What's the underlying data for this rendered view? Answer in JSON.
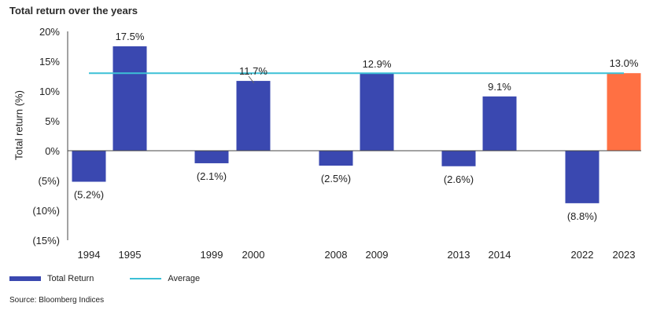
{
  "chart_data": {
    "type": "bar",
    "title": "Total return over the years",
    "ylabel": "Total return (%)",
    "ylim": [
      -15,
      20
    ],
    "yticks": [
      20,
      15,
      10,
      5,
      0,
      -5,
      -10,
      -15
    ],
    "ytick_labels": [
      "20%",
      "15%",
      "10%",
      "5%",
      "0%",
      "(5%)",
      "(10%)",
      "(15%)"
    ],
    "categories": [
      "1994",
      "1995",
      "1999",
      "2000",
      "2008",
      "2009",
      "2013",
      "2014",
      "2022",
      "2023"
    ],
    "values": [
      -5.2,
      17.5,
      -2.1,
      11.7,
      -2.5,
      12.9,
      -2.6,
      9.1,
      -8.8,
      13.0
    ],
    "data_labels": [
      "(5.2%)",
      "17.5%",
      "(2.1%)",
      "11.7%",
      "(2.5%)",
      "12.9%",
      "(2.6%)",
      "9.1%",
      "(8.8%)",
      "13.0%"
    ],
    "average": 13.0,
    "colors": {
      "bar": "#3a48b0",
      "highlight": "#ff7043",
      "average": "#3cc0d6",
      "axis": "#444444"
    },
    "highlight_index": 9,
    "legend": {
      "bar_label": "Total Return",
      "line_label": "Average",
      "placement": "bottom-left"
    },
    "source": "Source: Bloomberg Indices"
  }
}
